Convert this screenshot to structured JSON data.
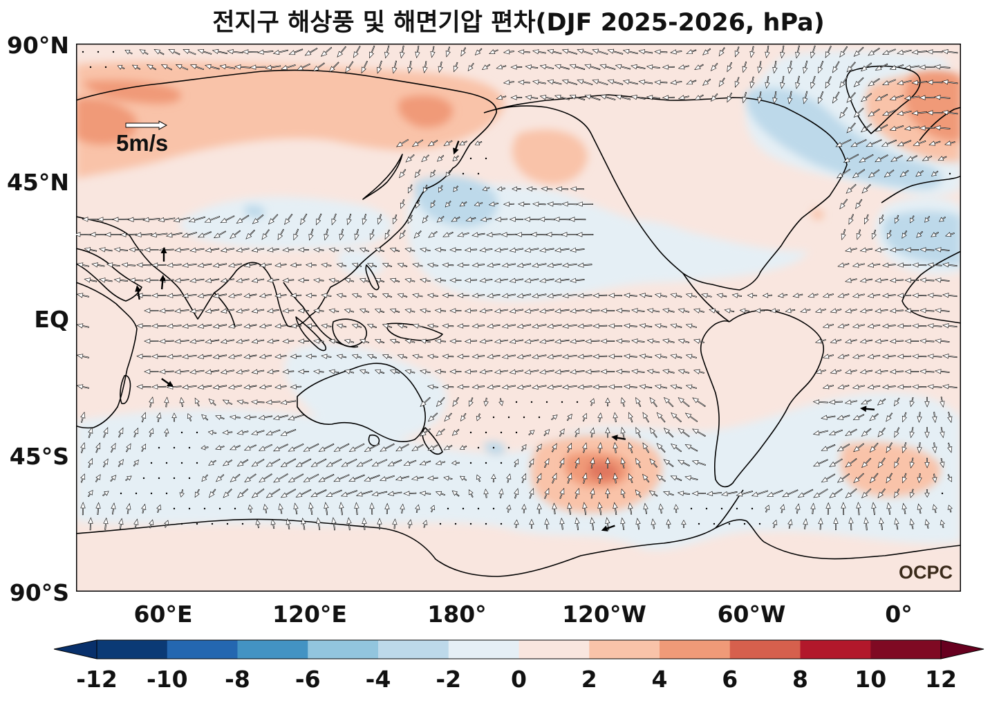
{
  "title": "전지구 해상풍 및 해면기압 편차(DJF 2025-2026, hPa)",
  "y_axis_labels": [
    "90°N",
    "45°N",
    "EQ",
    "45°S",
    "90°S"
  ],
  "x_axis_labels": [
    "60°E",
    "120°E",
    "180°",
    "120°W",
    "60°W",
    "0°"
  ],
  "reference_vector_label": "5m/s",
  "logo_text": "OCPC",
  "colorbar": {
    "labels": [
      "-12",
      "-10",
      "-8",
      "-6",
      "-4",
      "-2",
      "0",
      "2",
      "4",
      "6",
      "8",
      "10",
      "12"
    ],
    "colors": [
      "#0b3a75",
      "#2467b0",
      "#4393c3",
      "#92c5de",
      "#bdd9ea",
      "#e5eff5",
      "#f9e6df",
      "#f9c3a9",
      "#f09a78",
      "#d6604d",
      "#b2182b",
      "#7f0a23"
    ],
    "under_color": "#08306b",
    "over_color": "#67001f"
  },
  "colors": {
    "land_outline": "#000000",
    "frame": "#000000"
  }
}
